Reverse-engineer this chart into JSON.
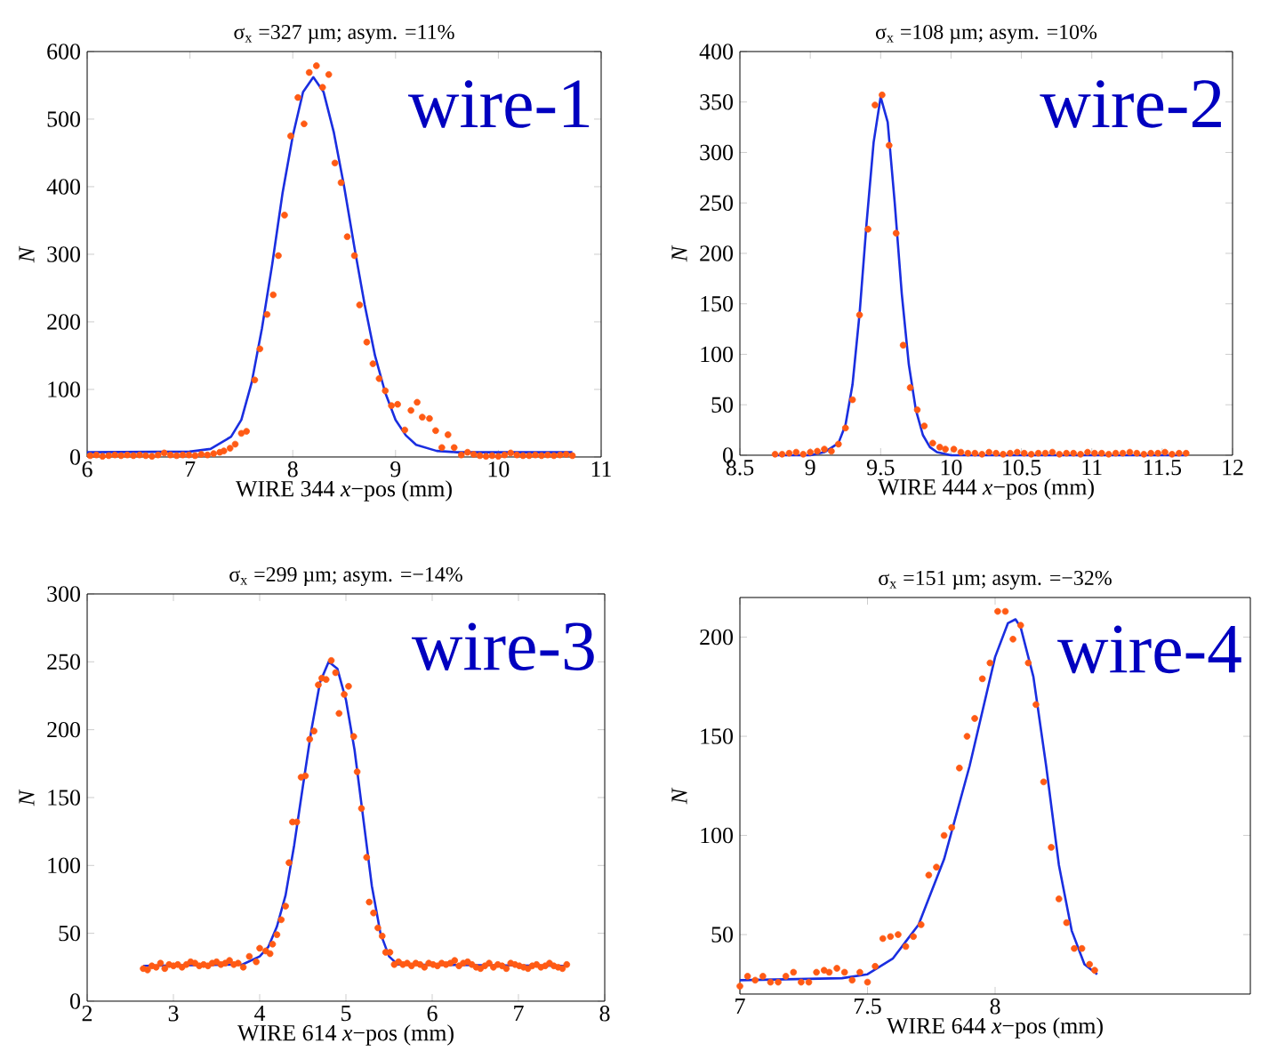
{
  "chart_data": [
    {
      "type": "scatter",
      "title": "σ$_{x}$ =327 µm;  asym. =11%",
      "xlabel": "WIRE 344  *x*−pos (mm)",
      "ylabel": "*N*",
      "annotations": [
        "wire-1"
      ],
      "xlim": [
        6,
        11
      ],
      "ylim": [
        0,
        600
      ],
      "xticks": [
        6,
        7,
        8,
        9,
        10,
        11
      ],
      "yticks": [
        0,
        100,
        200,
        300,
        400,
        500,
        600
      ],
      "series": [
        {
          "marker": "circle",
          "color": "#ff5a14",
          "x": [
            6.03,
            6.09,
            6.15,
            6.21,
            6.27,
            6.33,
            6.39,
            6.45,
            6.51,
            6.57,
            6.63,
            6.69,
            6.75,
            6.81,
            6.87,
            6.93,
            6.99,
            7.05,
            7.11,
            7.17,
            7.23,
            7.29,
            7.33,
            7.39,
            7.44,
            7.5,
            7.55,
            7.63,
            7.68,
            7.75,
            7.81,
            7.86,
            7.92,
            7.98,
            8.05,
            8.11,
            8.16,
            8.23,
            8.29,
            8.35,
            8.41,
            8.47,
            8.53,
            8.6,
            8.65,
            8.72,
            8.78,
            8.84,
            8.9,
            8.96,
            9.02,
            9.09,
            9.15,
            9.21,
            9.26,
            9.33,
            9.39,
            9.45,
            9.51,
            9.57,
            9.64,
            9.7,
            9.76,
            9.82,
            9.88,
            9.94,
            10.0,
            10.06,
            10.12,
            10.18,
            10.24,
            10.3,
            10.36,
            10.42,
            10.48,
            10.54,
            10.6,
            10.66,
            10.72
          ],
          "values": [
            2,
            3,
            1,
            2,
            3,
            2,
            3,
            2,
            3,
            2,
            1,
            3,
            6,
            3,
            2,
            3,
            3,
            2,
            4,
            3,
            5,
            7,
            9,
            13,
            19,
            35,
            38,
            114,
            160,
            211,
            240,
            298,
            358,
            475,
            532,
            493,
            569,
            579,
            547,
            566,
            435,
            406,
            326,
            298,
            225,
            170,
            138,
            116,
            98,
            76,
            78,
            40,
            69,
            81,
            59,
            57,
            39,
            14,
            33,
            14,
            3,
            7,
            4,
            2,
            1,
            2,
            1,
            3,
            6,
            3,
            2,
            2,
            3,
            2,
            3,
            2,
            3,
            4,
            2
          ]
        },
        {
          "type": "line",
          "color": "#1a2ee0",
          "x": [
            6.0,
            7.0,
            7.2,
            7.4,
            7.5,
            7.6,
            7.7,
            7.8,
            7.9,
            8.0,
            8.1,
            8.2,
            8.3,
            8.4,
            8.5,
            8.6,
            8.7,
            8.8,
            8.9,
            9.0,
            9.1,
            9.2,
            9.4,
            9.6,
            10.72
          ],
          "values": [
            7,
            8,
            12,
            30,
            55,
            110,
            190,
            285,
            390,
            475,
            540,
            562,
            540,
            480,
            400,
            310,
            225,
            150,
            95,
            55,
            32,
            18,
            9,
            7,
            7
          ]
        }
      ]
    },
    {
      "type": "scatter",
      "title": "σ$_{x}$ =108 µm;  asym. =10%",
      "xlabel": "WIRE 444  *x*−pos (mm)",
      "ylabel": "*N*",
      "annotations": [
        "wire-2"
      ],
      "xlim": [
        8.5,
        12
      ],
      "ylim": [
        0,
        400
      ],
      "xticks": [
        8.5,
        9,
        9.5,
        10,
        10.5,
        11,
        11.5,
        12
      ],
      "yticks": [
        0,
        50,
        100,
        150,
        200,
        250,
        300,
        350,
        400
      ],
      "series": [
        {
          "marker": "circle",
          "color": "#ff5a14",
          "x": [
            8.75,
            8.8,
            8.85,
            8.9,
            8.95,
            9.0,
            9.05,
            9.1,
            9.15,
            9.2,
            9.25,
            9.3,
            9.35,
            9.41,
            9.46,
            9.51,
            9.56,
            9.61,
            9.66,
            9.71,
            9.76,
            9.81,
            9.87,
            9.92,
            9.96,
            10.02,
            10.07,
            10.12,
            10.17,
            10.22,
            10.27,
            10.32,
            10.37,
            10.42,
            10.47,
            10.52,
            10.57,
            10.62,
            10.67,
            10.72,
            10.77,
            10.82,
            10.87,
            10.92,
            10.97,
            11.02,
            11.07,
            11.12,
            11.17,
            11.22,
            11.27,
            11.32,
            11.37,
            11.42,
            11.47,
            11.52,
            11.57,
            11.62,
            11.67
          ],
          "values": [
            1,
            1,
            2,
            3,
            1,
            3,
            4,
            6,
            4,
            11,
            27,
            55,
            139,
            224,
            347,
            357,
            307,
            220,
            109,
            67,
            45,
            29,
            12,
            8,
            6,
            6,
            3,
            2,
            2,
            1,
            3,
            2,
            1,
            2,
            3,
            2,
            1,
            2,
            2,
            3,
            1,
            2,
            2,
            1,
            3,
            2,
            2,
            1,
            2,
            2,
            3,
            2,
            1,
            2,
            2,
            3,
            1,
            2,
            2
          ]
        },
        {
          "type": "line",
          "color": "#1a2ee0",
          "x": [
            8.75,
            9.0,
            9.1,
            9.2,
            9.25,
            9.3,
            9.35,
            9.4,
            9.45,
            9.5,
            9.55,
            9.6,
            9.65,
            9.7,
            9.75,
            9.8,
            9.85,
            9.9,
            10.0,
            11.67
          ],
          "values": [
            0,
            0,
            3,
            12,
            30,
            70,
            140,
            230,
            310,
            355,
            330,
            250,
            160,
            90,
            45,
            20,
            8,
            3,
            0,
            0
          ]
        }
      ]
    },
    {
      "type": "scatter",
      "title": "σ$_{x}$ =299 µm;  asym. =−14%",
      "xlabel": "WIRE 614  *x*−pos (mm)",
      "ylabel": "*N*",
      "annotations": [
        "wire-3"
      ],
      "xlim": [
        2,
        8
      ],
      "ylim": [
        0,
        300
      ],
      "xticks": [
        2,
        3,
        4,
        5,
        6,
        7,
        8
      ],
      "yticks": [
        0,
        50,
        100,
        150,
        200,
        250,
        300
      ],
      "series": [
        {
          "marker": "circle",
          "color": "#ff5a14",
          "x": [
            2.65,
            2.7,
            2.75,
            2.8,
            2.85,
            2.9,
            2.95,
            3.0,
            3.05,
            3.1,
            3.15,
            3.2,
            3.25,
            3.3,
            3.35,
            3.4,
            3.45,
            3.5,
            3.55,
            3.6,
            3.65,
            3.7,
            3.75,
            3.81,
            3.88,
            3.96,
            4.0,
            4.07,
            4.12,
            4.15,
            4.2,
            4.25,
            4.3,
            4.34,
            4.38,
            4.43,
            4.48,
            4.53,
            4.58,
            4.63,
            4.68,
            4.72,
            4.77,
            4.83,
            4.88,
            4.92,
            4.98,
            5.03,
            5.09,
            5.13,
            5.18,
            5.24,
            5.27,
            5.32,
            5.37,
            5.42,
            5.46,
            5.51,
            5.56,
            5.61,
            5.66,
            5.71,
            5.76,
            5.81,
            5.86,
            5.91,
            5.96,
            6.01,
            6.06,
            6.11,
            6.16,
            6.21,
            6.26,
            6.31,
            6.36,
            6.41,
            6.46,
            6.51,
            6.56,
            6.61,
            6.66,
            6.71,
            6.76,
            6.81,
            6.86,
            6.91,
            6.96,
            7.01,
            7.06,
            7.11,
            7.16,
            7.21,
            7.26,
            7.31,
            7.36,
            7.41,
            7.46,
            7.51,
            7.56
          ],
          "values": [
            24,
            23,
            26,
            25,
            28,
            24,
            27,
            26,
            27,
            25,
            27,
            29,
            28,
            26,
            27,
            26,
            28,
            29,
            27,
            28,
            30,
            27,
            28,
            25,
            33,
            29,
            39,
            37,
            35,
            42,
            49,
            60,
            70,
            102,
            132,
            132,
            165,
            166,
            193,
            199,
            233,
            238,
            237,
            251,
            242,
            212,
            226,
            232,
            195,
            169,
            142,
            106,
            73,
            65,
            54,
            48,
            36,
            36,
            27,
            29,
            27,
            28,
            26,
            28,
            27,
            25,
            28,
            27,
            26,
            28,
            27,
            28,
            30,
            26,
            28,
            29,
            27,
            25,
            24,
            26,
            28,
            25,
            27,
            26,
            24,
            28,
            27,
            26,
            25,
            24,
            26,
            27,
            25,
            26,
            28,
            26,
            25,
            24,
            27
          ]
        },
        {
          "type": "line",
          "color": "#1a2ee0",
          "x": [
            2.65,
            3.8,
            4.0,
            4.1,
            4.2,
            4.3,
            4.4,
            4.5,
            4.6,
            4.7,
            4.8,
            4.9,
            5.0,
            5.1,
            5.2,
            5.3,
            5.4,
            5.5,
            5.6,
            7.56
          ],
          "values": [
            26,
            27,
            33,
            40,
            55,
            78,
            115,
            158,
            200,
            235,
            250,
            245,
            222,
            185,
            135,
            85,
            50,
            33,
            27,
            26
          ]
        }
      ]
    },
    {
      "type": "scatter",
      "title": "σ$_{x}$ =151 µm;  asym. =−32%",
      "xlabel": "WIRE 644  *x*−pos (mm)",
      "ylabel": "*N*",
      "annotations": [
        "wire-4"
      ],
      "xlim": [
        7,
        9
      ],
      "ylim": [
        20,
        220
      ],
      "xticks": [
        7,
        7.5,
        8
      ],
      "yticks": [
        50,
        100,
        150,
        200
      ],
      "series": [
        {
          "marker": "circle",
          "color": "#ff5a14",
          "x": [
            7.0,
            7.03,
            7.06,
            7.09,
            7.12,
            7.15,
            7.18,
            7.21,
            7.24,
            7.27,
            7.3,
            7.33,
            7.35,
            7.38,
            7.41,
            7.44,
            7.47,
            7.5,
            7.53,
            7.56,
            7.59,
            7.62,
            7.65,
            7.68,
            7.71,
            7.74,
            7.77,
            7.8,
            7.83,
            7.86,
            7.89,
            7.92,
            7.95,
            7.98,
            8.01,
            8.04,
            8.07,
            8.1,
            8.13,
            8.16,
            8.19,
            8.22,
            8.25,
            8.28,
            8.31,
            8.34,
            8.37,
            8.39
          ],
          "values": [
            24,
            29,
            27,
            29,
            26,
            26,
            29,
            31,
            26,
            26,
            31,
            32,
            31,
            33,
            31,
            27,
            31,
            26,
            34,
            48,
            49,
            50,
            44,
            49,
            55,
            80,
            84,
            100,
            104,
            134,
            150,
            159,
            179,
            187,
            213,
            213,
            199,
            206,
            187,
            166,
            127,
            94,
            68,
            56,
            43,
            43,
            35,
            32
          ]
        },
        {
          "type": "line",
          "color": "#1a2ee0",
          "x": [
            7.0,
            7.4,
            7.5,
            7.6,
            7.7,
            7.8,
            7.9,
            8.0,
            8.05,
            8.08,
            8.1,
            8.15,
            8.2,
            8.25,
            8.3,
            8.35,
            8.4
          ],
          "values": [
            27,
            28,
            30,
            38,
            55,
            88,
            135,
            190,
            207,
            209,
            205,
            180,
            135,
            85,
            52,
            35,
            30
          ]
        }
      ]
    }
  ]
}
